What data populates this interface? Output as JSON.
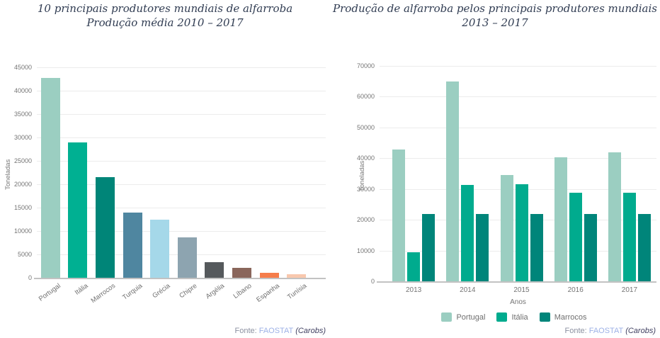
{
  "page": {
    "background": "#ffffff"
  },
  "colors": {
    "title_text": "#303c52",
    "axis_text": "#757575",
    "grid": "#ececec",
    "axis_line": "#c2c2c2",
    "source_text": "#8b90a0",
    "source_link": "#9db1e6",
    "source_note": "#3f3f60"
  },
  "chart_data": [
    {
      "type": "bar",
      "title_lines": [
        "10 principais produtores mundiais de alfarroba",
        "Produção média 2010 – 2017"
      ],
      "title": "10 principais produtores mundiais de alfarroba — Produção média 2010 – 2017",
      "categories": [
        "Portugal",
        "Itália",
        "Marrocos",
        "Turquia",
        "Grécia",
        "Chipre",
        "Argélia",
        "Líbano",
        "Espanha",
        "Tunísia"
      ],
      "values": [
        42700,
        29000,
        21500,
        14000,
        12500,
        8600,
        3300,
        2200,
        1100,
        800
      ],
      "bar_colors": [
        "#9bcec1",
        "#00b092",
        "#008578",
        "#4f86a0",
        "#a5d8e9",
        "#8da4b0",
        "#55595c",
        "#8a665b",
        "#f57d4b",
        "#f8c8ae"
      ],
      "xlabel": "",
      "ylabel": "Toneladas",
      "ylim": [
        0,
        45000
      ],
      "ytick_step": 5000,
      "grid": true,
      "legend": "none",
      "source": {
        "label": "Fonte:",
        "link": "FAOSTAT",
        "note": "(Carobs)"
      }
    },
    {
      "type": "bar",
      "title_lines": [
        "Produção de alfarroba pelos principais produtores mundiais",
        "2013 – 2017"
      ],
      "title": "Produção de alfarroba pelos principais produtores mundiais — 2013 – 2017",
      "categories": [
        "2013",
        "2014",
        "2015",
        "2016",
        "2017"
      ],
      "series": [
        {
          "name": "Portugal",
          "color": "#9bcec1",
          "values": [
            42900,
            64900,
            34500,
            40200,
            41900
          ]
        },
        {
          "name": "Itália",
          "color": "#00ab8e",
          "values": [
            9400,
            31400,
            31500,
            28900,
            28900
          ]
        },
        {
          "name": "Marrocos",
          "color": "#00857a",
          "values": [
            22000,
            22000,
            22000,
            22000,
            22000
          ]
        }
      ],
      "xlabel": "Anos",
      "ylabel": "Toneladas",
      "ylim": [
        0,
        70000
      ],
      "ytick_step": 10000,
      "grid": true,
      "legend": "bottom",
      "legend_position": "bottom",
      "source": {
        "label": "Fonte:",
        "link": "FAOSTAT",
        "note": "(Carobs)"
      }
    }
  ]
}
